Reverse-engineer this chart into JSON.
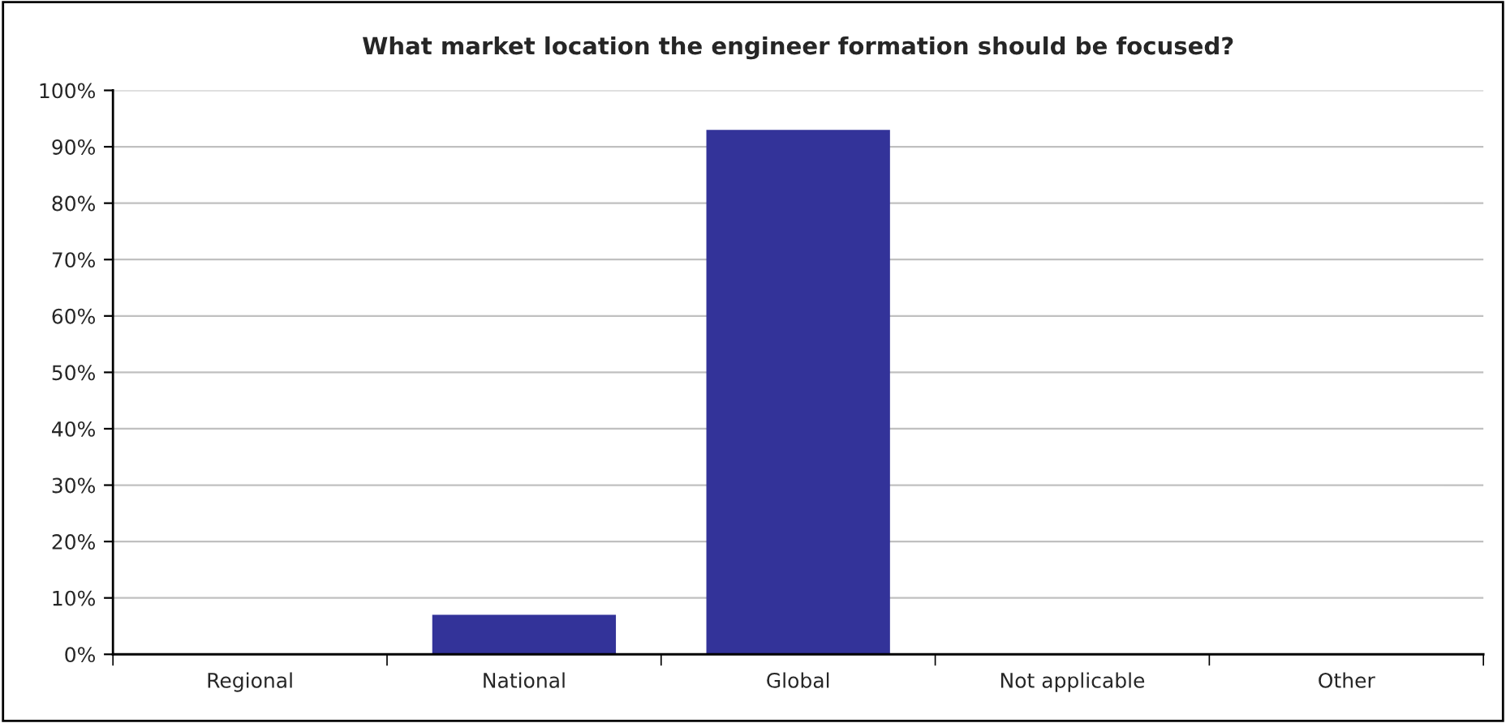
{
  "chart_data": {
    "type": "bar",
    "title": "What market location the engineer formation should be focused?",
    "categories": [
      "Regional",
      "National",
      "Global",
      "Not applicable",
      "Other"
    ],
    "values": [
      0,
      7,
      93,
      0,
      0
    ],
    "color": "#333399",
    "ylim": [
      0,
      100
    ],
    "yticks": [
      {
        "value": 0,
        "label": "0%"
      },
      {
        "value": 10,
        "label": "10%"
      },
      {
        "value": 20,
        "label": "20%"
      },
      {
        "value": 30,
        "label": "30%"
      },
      {
        "value": 40,
        "label": "40%"
      },
      {
        "value": 50,
        "label": "50%"
      },
      {
        "value": 60,
        "label": "60%"
      },
      {
        "value": 70,
        "label": "70%"
      },
      {
        "value": 80,
        "label": "80%"
      },
      {
        "value": 90,
        "label": "90%"
      },
      {
        "value": 100,
        "label": "100%"
      }
    ],
    "grid": "y"
  }
}
